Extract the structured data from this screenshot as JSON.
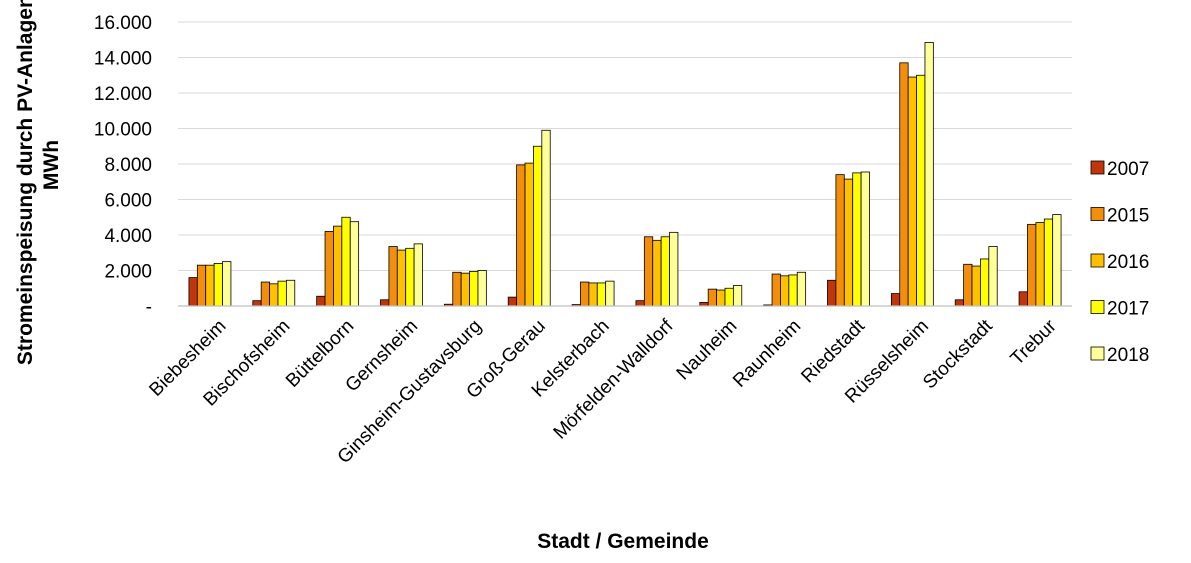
{
  "chart_data": {
    "type": "bar",
    "title": "",
    "xlabel": "Stadt / Gemeinde",
    "ylabel_lines": [
      "Stromeinspeisung durch PV-Anlagen in",
      "MWh"
    ],
    "ylim": [
      0,
      16000
    ],
    "y_ticks": [
      0,
      2000,
      4000,
      6000,
      8000,
      10000,
      12000,
      14000,
      16000
    ],
    "y_tick_labels": [
      "-",
      "2.000",
      "4.000",
      "6.000",
      "8.000",
      "10.000",
      "12.000",
      "14.000",
      "16.000"
    ],
    "grid": true,
    "legend_position": "right",
    "categories": [
      "Biebesheim",
      "Bischofsheim",
      "Büttelborn",
      "Gernsheim",
      "Ginsheim-Gustavsburg",
      "Groß-Gerau",
      "Kelsterbach",
      "Mörfelden-Walldorf",
      "Nauheim",
      "Raunheim",
      "Riedstadt",
      "Rüsselsheim",
      "Stockstadt",
      "Trebur"
    ],
    "series": [
      {
        "name": "2007",
        "color": "#C0360A",
        "values": [
          1600,
          300,
          550,
          350,
          100,
          500,
          80,
          300,
          200,
          60,
          1450,
          700,
          350,
          800
        ]
      },
      {
        "name": "2015",
        "color": "#F28E0C",
        "values": [
          2300,
          1350,
          4200,
          3350,
          1900,
          7950,
          1350,
          3900,
          950,
          1800,
          7400,
          13700,
          2350,
          4600
        ]
      },
      {
        "name": "2016",
        "color": "#FFC000",
        "values": [
          2300,
          1250,
          4500,
          3150,
          1850,
          8050,
          1300,
          3700,
          900,
          1700,
          7150,
          12900,
          2250,
          4700
        ]
      },
      {
        "name": "2017",
        "color": "#FFFF00",
        "values": [
          2400,
          1400,
          5000,
          3250,
          1950,
          9000,
          1300,
          3900,
          1000,
          1750,
          7500,
          13000,
          2650,
          4900
        ]
      },
      {
        "name": "2018",
        "color": "#FFFF99",
        "values": [
          2500,
          1450,
          4750,
          3500,
          2000,
          9900,
          1400,
          4150,
          1150,
          1900,
          7550,
          14850,
          3350,
          5150
        ]
      }
    ]
  }
}
